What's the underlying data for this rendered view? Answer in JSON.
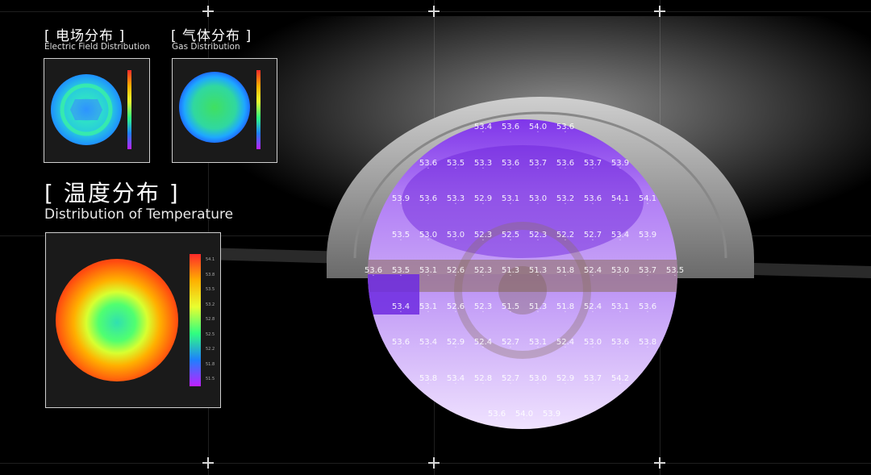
{
  "electric": {
    "title_cn": "[ 电场分布 ]",
    "title_en": "Electric Field Distribution"
  },
  "gas": {
    "title_cn": "[ 气体分布 ]",
    "title_en": "Gas Distribution"
  },
  "temperature": {
    "title_cn": "[ 温度分布 ]",
    "title_en": "Distribution of Temperature",
    "legend_ticks": [
      "54.1",
      "53.8",
      "53.5",
      "53.2",
      "52.8",
      "52.5",
      "52.2",
      "51.8",
      "51.5"
    ]
  },
  "wafer_values": [
    [
      "53.4",
      "53.6",
      "54.0",
      "53.6"
    ],
    [
      "53.6",
      "53.5",
      "53.3",
      "53.6",
      "53.7",
      "53.6",
      "53.7",
      "53.9"
    ],
    [
      "53.9",
      "53.6",
      "53.3",
      "52.9",
      "53.1",
      "53.0",
      "53.2",
      "53.6",
      "54.1",
      "54.1"
    ],
    [
      "53.5",
      "53.0",
      "53.0",
      "52.3",
      "52.5",
      "52.3",
      "52.2",
      "52.7",
      "53.4",
      "53.9"
    ],
    [
      "53.6",
      "53.5",
      "53.1",
      "52.6",
      "52.3",
      "51.3",
      "51.3",
      "51.8",
      "52.4",
      "53.0",
      "53.7",
      "53.5"
    ],
    [
      "53.4",
      "53.1",
      "52.6",
      "52.3",
      "51.5",
      "51.3",
      "51.8",
      "52.4",
      "53.1",
      "53.6"
    ],
    [
      "53.6",
      "53.4",
      "52.9",
      "52.4",
      "52.7",
      "53.1",
      "52.4",
      "53.0",
      "53.6",
      "53.8"
    ],
    [
      "53.8",
      "53.4",
      "52.8",
      "52.7",
      "53.0",
      "52.9",
      "53.7",
      "54.2"
    ],
    [
      "53.6",
      "54.0",
      "53.9"
    ]
  ],
  "colors": {
    "wafer_purple": "#9a4df0",
    "accent_white": "#ffffff"
  }
}
